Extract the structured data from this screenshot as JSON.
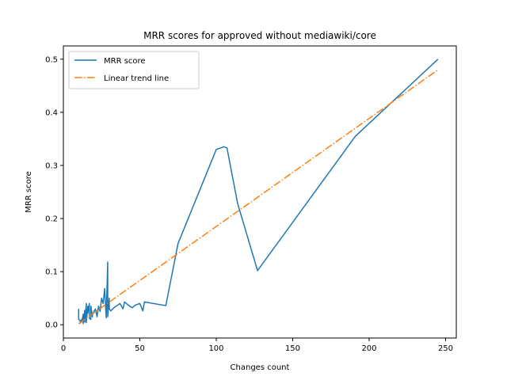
{
  "chart_data": {
    "type": "line",
    "title": "MRR scores for approved without mediawiki/core",
    "xlabel": "Changes count",
    "ylabel": "MRR score",
    "xlim": [
      0,
      257
    ],
    "ylim": [
      -0.025,
      0.525
    ],
    "xticks": [
      0,
      50,
      100,
      150,
      200,
      250
    ],
    "xtick_labels": [
      "0",
      "50",
      "100",
      "150",
      "200",
      "250"
    ],
    "yticks": [
      0.0,
      0.1,
      0.2,
      0.3,
      0.4,
      0.5
    ],
    "ytick_labels": [
      "0.0",
      "0.1",
      "0.2",
      "0.3",
      "0.4",
      "0.5"
    ],
    "grid": false,
    "legend_position": "top-left",
    "series": [
      {
        "name": "MRR score",
        "color": "#1f77b4",
        "style": "solid",
        "x": [
          10,
          10,
          11,
          11,
          12,
          12,
          13,
          13,
          14,
          14,
          15,
          15,
          16,
          16,
          17,
          17,
          18,
          18,
          19,
          19,
          20,
          21,
          22,
          23,
          24,
          25,
          26,
          27,
          28,
          29,
          29,
          30,
          30,
          31,
          33,
          35,
          37,
          39,
          40,
          42,
          45,
          47,
          50,
          52,
          53,
          67,
          75,
          100,
          105,
          107,
          114,
          127,
          191,
          245
        ],
        "y": [
          0.03,
          0.01,
          0.008,
          0.003,
          0.01,
          0.005,
          0.02,
          0.002,
          0.027,
          0.005,
          0.04,
          0.004,
          0.035,
          0.022,
          0.04,
          0.012,
          0.01,
          0.035,
          0.015,
          0.018,
          0.025,
          0.03,
          0.015,
          0.035,
          0.025,
          0.05,
          0.04,
          0.068,
          0.013,
          0.118,
          0.015,
          0.05,
          0.03,
          0.026,
          0.032,
          0.036,
          0.04,
          0.03,
          0.043,
          0.038,
          0.032,
          0.037,
          0.04,
          0.026,
          0.043,
          0.036,
          0.153,
          0.33,
          0.335,
          0.333,
          0.228,
          0.102,
          0.355,
          0.5
        ]
      },
      {
        "name": "Linear trend line",
        "color": "#ff7f0e",
        "style": "dashdot",
        "x": [
          10,
          245
        ],
        "y": [
          0.002,
          0.48
        ]
      }
    ]
  }
}
